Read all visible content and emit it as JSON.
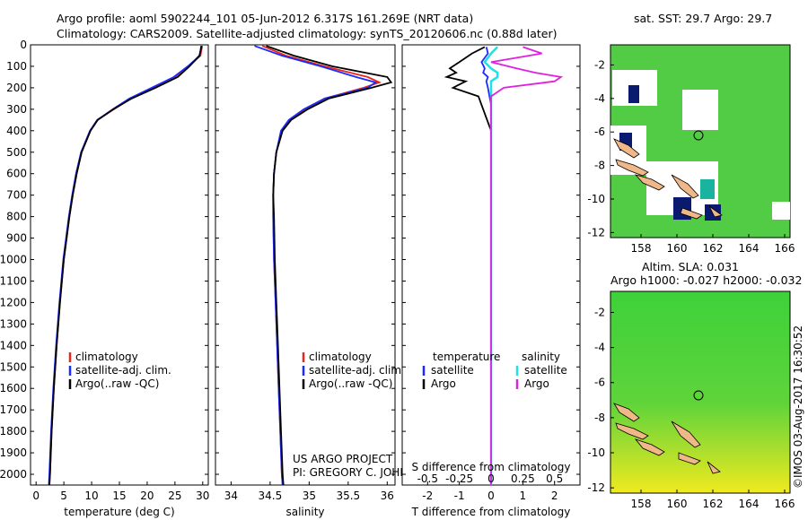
{
  "header": {
    "line1": "Argo profile: aoml 5902244_101 05-Jun-2012 6.317S 161.269E (NRT data)",
    "line2": "Climatology: CARS2009. Satellite-adjusted climatology: synTS_20120606.nc (0.88d later)"
  },
  "credits": {
    "project": "US ARGO PROJECT",
    "pi": "PI: GREGORY C. JOHNSON",
    "stamp": "©IMOS 03-Aug-2017 16:30:52"
  },
  "colors": {
    "climatology": "#e8261a",
    "satellite": "#1a2bff",
    "argo": "#000000",
    "sat_salinity": "#22e0e8",
    "argo_salinity": "#e020e0"
  },
  "chart_data": [
    {
      "type": "line",
      "panel": "temperature",
      "xlabel": "temperature (deg C)",
      "ylabel": "",
      "xlim": [
        -1,
        31
      ],
      "ylim": [
        2050,
        0
      ],
      "xticks": [
        0,
        5,
        10,
        15,
        20,
        25,
        30
      ],
      "yticks": [
        0,
        100,
        200,
        300,
        400,
        500,
        600,
        700,
        800,
        900,
        1000,
        1100,
        1200,
        1300,
        1400,
        1500,
        1600,
        1700,
        1800,
        1900,
        2000
      ],
      "legend": [
        "climatology",
        "satellite-adj. clim.",
        "Argo(..raw -QC)"
      ],
      "depth": [
        5,
        50,
        100,
        150,
        200,
        250,
        300,
        350,
        400,
        500,
        600,
        700,
        800,
        900,
        1000,
        1200,
        1400,
        1600,
        1800,
        2000,
        2050
      ],
      "series": [
        {
          "name": "climatology",
          "values": [
            29.9,
            29.6,
            27.5,
            25,
            21,
            17,
            14,
            11,
            9.8,
            8.2,
            7.3,
            6.6,
            6.0,
            5.5,
            5.0,
            4.3,
            3.7,
            3.2,
            2.8,
            2.5,
            2.4
          ]
        },
        {
          "name": "satellite-adj. clim.",
          "values": [
            29.7,
            29.5,
            27.3,
            24.8,
            20.8,
            16.8,
            13.8,
            11,
            9.7,
            8.1,
            7.2,
            6.5,
            5.9,
            5.4,
            4.9,
            4.2,
            3.6,
            3.1,
            2.7,
            2.4,
            2.3
          ]
        },
        {
          "name": "Argo(..raw -QC)",
          "values": [
            29.8,
            29.4,
            27.6,
            25.5,
            21.5,
            17.2,
            13.9,
            11.1,
            9.8,
            8.2,
            7.3,
            6.6,
            6.0,
            5.5,
            5.0,
            4.3,
            3.7,
            3.2,
            2.8,
            2.5,
            2.4
          ]
        }
      ]
    },
    {
      "type": "line",
      "panel": "salinity",
      "xlabel": "salinity",
      "xlim": [
        33.8,
        36.1
      ],
      "ylim": [
        2050,
        0
      ],
      "xticks": [
        34,
        34.5,
        35,
        35.5,
        36
      ],
      "legend": [
        "climatology",
        "satellite-adj. clim.",
        "Argo(..raw -QC)"
      ],
      "depth": [
        5,
        50,
        100,
        150,
        175,
        200,
        250,
        300,
        350,
        400,
        500,
        600,
        700,
        800,
        1000,
        1200,
        1400,
        1600,
        1800,
        2000,
        2050
      ],
      "series": [
        {
          "name": "climatology",
          "values": [
            34.4,
            34.7,
            35.2,
            35.75,
            35.9,
            35.7,
            35.2,
            34.95,
            34.75,
            34.65,
            34.58,
            34.55,
            34.54,
            34.54,
            34.55,
            34.57,
            34.59,
            34.61,
            34.63,
            34.65,
            34.66
          ]
        },
        {
          "name": "satellite-adj. clim.",
          "values": [
            34.3,
            34.65,
            35.15,
            35.6,
            35.85,
            35.75,
            35.2,
            34.93,
            34.74,
            34.64,
            34.58,
            34.55,
            34.54,
            34.54,
            34.55,
            34.57,
            34.59,
            34.61,
            34.63,
            34.65,
            34.66
          ]
        },
        {
          "name": "Argo(..raw -QC)",
          "values": [
            34.45,
            34.8,
            35.3,
            36.0,
            36.05,
            35.8,
            35.25,
            34.98,
            34.77,
            34.66,
            34.58,
            34.55,
            34.54,
            34.55,
            34.56,
            34.58,
            34.6,
            34.62,
            34.64,
            34.66,
            34.67
          ]
        }
      ]
    },
    {
      "type": "line",
      "panel": "difference",
      "xlabel": "T difference from climatology",
      "xlabel_top": "S difference from climatology",
      "xlim": [
        -2.8,
        2.8
      ],
      "ylim": [
        2050,
        0
      ],
      "xticks": [
        -2,
        -1,
        0,
        1,
        2
      ],
      "xticks_s": [
        "-0.5",
        "-0.25",
        "0",
        "0.25",
        "0.5"
      ],
      "legend": {
        "temperature_header": "temperature",
        "salinity_header": "salinity",
        "items": [
          "satellite",
          "Argo",
          "satellite",
          "Argo"
        ]
      },
      "depth": [
        10,
        40,
        80,
        110,
        130,
        150,
        170,
        200,
        240,
        280,
        320,
        400,
        600,
        800,
        1000,
        1200,
        1500,
        1800,
        2050
      ],
      "series": [
        {
          "name": "satellite",
          "values": [
            -0.15,
            -0.1,
            -0.3,
            -0.2,
            -0.25,
            -0.1,
            -0.15,
            -0.1,
            -0.05,
            0,
            0,
            0,
            0,
            0,
            0,
            0,
            0,
            0,
            0
          ]
        },
        {
          "name": "Argo",
          "values": [
            -0.2,
            -0.6,
            -1.0,
            -1.3,
            -1.1,
            -1.4,
            -0.8,
            -1.2,
            -0.4,
            -0.3,
            -0.2,
            0,
            0,
            0,
            0,
            0,
            0,
            0,
            0
          ]
        },
        {
          "name": "satellite",
          "values": [
            0.05,
            0.0,
            -0.05,
            0.0,
            0.05,
            0.05,
            0.0,
            0.0,
            0.0,
            0.0,
            0.0,
            0.0,
            0.0,
            0.0,
            0.0,
            0.0,
            0.0,
            0.0,
            0.0
          ]
        },
        {
          "name": "Argo",
          "values": [
            0.25,
            0.4,
            0.0,
            0.2,
            0.35,
            0.55,
            0.5,
            0.1,
            0.0,
            0.0,
            0.0,
            0.0,
            0.0,
            0.0,
            0.0,
            0.0,
            0.0,
            0.0,
            0.0
          ]
        }
      ]
    },
    {
      "type": "heatmap",
      "panel": "sst-map",
      "title": "sat. SST: 29.7 Argo: 29.7",
      "xlim": [
        156.3,
        166.3
      ],
      "ylim": [
        -12.3,
        -0.8
      ],
      "xticks": [
        158,
        160,
        162,
        164,
        166
      ],
      "yticks": [
        -2,
        -4,
        -6,
        -8,
        -10,
        -12
      ]
    },
    {
      "type": "heatmap",
      "panel": "sla-map",
      "title": "Altim. SLA: 0.031",
      "subtitle": "Argo h1000: -0.027 h2000: -0.032",
      "xlim": [
        156.3,
        166.3
      ],
      "ylim": [
        -12.3,
        -0.8
      ],
      "xticks": [
        158,
        160,
        162,
        164,
        166
      ],
      "yticks": [
        -2,
        -4,
        -6,
        -8,
        -10,
        -12
      ]
    }
  ]
}
